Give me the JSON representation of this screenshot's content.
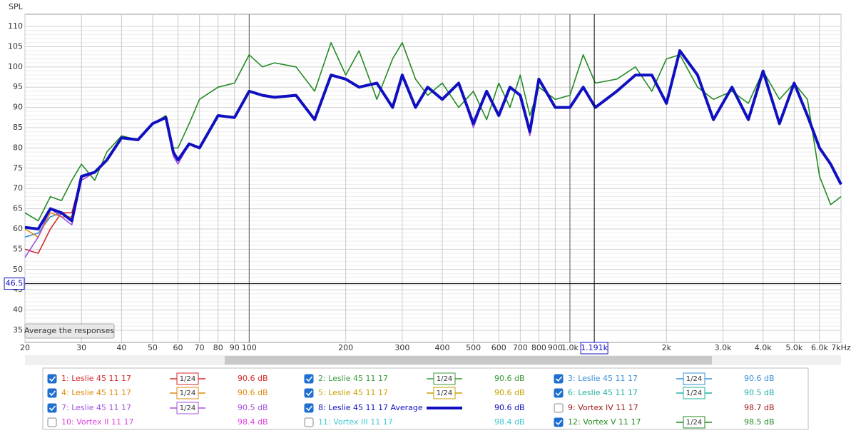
{
  "chart_data": {
    "type": "line",
    "y_label": "SPL",
    "button": "Average the responses",
    "x": [
      20,
      22,
      24,
      26,
      28,
      30,
      33,
      36,
      40,
      45,
      50,
      55,
      58,
      60,
      65,
      70,
      80,
      90,
      100,
      110,
      120,
      140,
      160,
      180,
      200,
      220,
      250,
      280,
      300,
      330,
      360,
      400,
      450,
      500,
      550,
      600,
      650,
      700,
      750,
      800,
      900,
      1000,
      1100,
      1200,
      1400,
      1600,
      1800,
      2000,
      2200,
      2500,
      2800,
      3200,
      3600,
      4000,
      4500,
      5000,
      5500,
      6000,
      6500,
      7000
    ],
    "xlim": [
      20,
      7000
    ],
    "log_x": true,
    "xticks": [
      20,
      30,
      40,
      50,
      60,
      70,
      80,
      90,
      100,
      200,
      300,
      400,
      500,
      600,
      700,
      800,
      900,
      {
        "value": 1000,
        "label": "1.0k"
      },
      {
        "value": 2000,
        "label": "2k"
      },
      {
        "value": 3000,
        "label": "3.0k"
      },
      {
        "value": 4000,
        "label": "4.0k"
      },
      {
        "value": 5000,
        "label": "5.0k"
      },
      {
        "value": 6000,
        "label": "6.0k"
      },
      {
        "value": 7000,
        "label": "7kHz"
      }
    ],
    "ylim": [
      32,
      113
    ],
    "yticks": [
      35,
      40,
      45,
      50,
      55,
      60,
      65,
      70,
      75,
      80,
      85,
      90,
      95,
      100,
      105,
      110
    ],
    "grid": true,
    "cursor": {
      "x": 1191,
      "x_label": "1.191k",
      "y": 46.5
    },
    "series": [
      {
        "name": "1: Leslie 45 11 17",
        "color": "#d42a2a",
        "checked": true,
        "smoothing": "1/24",
        "level": "90.6 dB",
        "values": [
          55,
          54,
          60,
          64,
          64,
          73,
          74,
          77,
          82.5,
          82,
          86,
          87.5,
          79,
          77,
          81,
          80,
          88,
          87.5,
          94,
          93,
          92.5,
          93,
          87,
          98,
          97,
          95,
          96,
          90,
          98,
          90,
          95,
          92,
          96,
          86,
          94,
          88,
          95,
          93,
          84,
          97,
          90,
          90,
          95,
          90,
          94,
          98,
          98,
          91,
          104,
          98,
          87,
          95,
          87,
          99,
          86,
          96,
          88,
          80,
          76,
          71
        ]
      },
      {
        "name": "2: Leslie 45 11 17",
        "color": "#3a9a3a",
        "checked": true,
        "smoothing": "1/24",
        "level": "90.6 dB"
      },
      {
        "name": "3: Leslie 45 11 17",
        "color": "#3a8fd8",
        "checked": true,
        "smoothing": "1/24",
        "level": "90.6 dB",
        "values": [
          58,
          59,
          63,
          64,
          62,
          73,
          74,
          77,
          82.5,
          82,
          86,
          87.5,
          79,
          77,
          81,
          80,
          88,
          87.5,
          94,
          93,
          92.5,
          93,
          87,
          98,
          97,
          95,
          96,
          90,
          98,
          90,
          95,
          92,
          96,
          86,
          94,
          88,
          95,
          93,
          84,
          97,
          90,
          90,
          95,
          90,
          94,
          98,
          98,
          91,
          104,
          98,
          87,
          95,
          87,
          99,
          86,
          96,
          88,
          80,
          76,
          71
        ]
      },
      {
        "name": "4: Leslie 45 11 17",
        "color": "#e08a10",
        "checked": true,
        "smoothing": "1/24",
        "level": "90.6 dB",
        "values": [
          60,
          58,
          64,
          63,
          63,
          72,
          74,
          77,
          82.5,
          82,
          86,
          87.5,
          79,
          77,
          81,
          80,
          88,
          87.5,
          94,
          93,
          92.5,
          93,
          87,
          98,
          97,
          95,
          96,
          90,
          98,
          90,
          95,
          92,
          96,
          86,
          94,
          88,
          95,
          93,
          84,
          97,
          90,
          90,
          95,
          90,
          94,
          98,
          98,
          91,
          104,
          98,
          87,
          95,
          87,
          99,
          86,
          96,
          88,
          80,
          76,
          71
        ]
      },
      {
        "name": "5: Leslie 45 11 17",
        "color": "#c8a000",
        "checked": true,
        "smoothing": "1/24",
        "level": "90.6 dB"
      },
      {
        "name": "6: Leslie 45 11 17",
        "color": "#20b0a0",
        "checked": true,
        "smoothing": "1/24",
        "level": "90.5 dB"
      },
      {
        "name": "7: Leslie 45 11 17",
        "color": "#a050e0",
        "checked": true,
        "smoothing": "1/24",
        "level": "90.5 dB",
        "values": [
          53,
          58,
          65,
          63,
          61,
          72,
          74,
          77,
          82.5,
          82,
          86,
          87.5,
          78,
          76,
          81,
          80,
          88,
          87.5,
          94,
          93,
          92.5,
          93,
          87,
          98,
          97,
          95,
          96,
          90,
          98,
          90,
          95,
          92,
          96,
          85,
          94,
          88,
          95,
          93,
          83,
          97,
          90,
          90,
          95,
          90,
          94,
          98,
          98,
          91,
          104,
          98,
          87,
          95,
          87,
          99,
          86,
          96,
          88,
          80,
          76,
          71
        ]
      },
      {
        "name": "8: Leslie 45 11 17 Average",
        "color": "#1010c0",
        "checked": true,
        "thick": true,
        "level": "90.6 dB",
        "values": [
          60.4,
          60,
          65,
          64,
          62,
          73,
          74,
          77,
          82.5,
          82,
          86,
          87.5,
          79,
          77,
          81,
          80,
          88,
          87.5,
          94,
          93,
          92.5,
          93,
          87,
          98,
          97,
          95,
          96,
          90,
          98,
          90,
          95,
          92,
          96,
          86,
          94,
          88,
          95,
          93,
          84,
          97,
          90,
          90,
          95,
          90,
          94,
          98,
          98,
          91,
          104,
          98,
          87,
          95,
          87,
          99,
          86,
          96,
          88,
          80,
          76,
          71
        ]
      },
      {
        "name": "9: Vortex IV 11 17",
        "color": "#a01818",
        "checked": false,
        "level": "98.7 dB"
      },
      {
        "name": "10: Vortex II 11 17",
        "color": "#e040e0",
        "checked": false,
        "level": "98.4 dB"
      },
      {
        "name": "11: Vortex III 11 17",
        "color": "#40c8d0",
        "checked": false,
        "level": "98.4 dB"
      },
      {
        "name": "12: Vortex V 11 17",
        "color": "#238a23",
        "checked": true,
        "smoothing": "1/24",
        "level": "98.5 dB",
        "values": [
          64,
          62,
          68,
          67,
          72,
          76,
          72,
          79,
          83,
          82,
          86,
          88,
          80,
          80,
          86,
          92,
          95,
          96,
          103,
          100,
          101,
          100,
          94,
          106,
          98,
          104,
          92,
          102,
          106,
          97,
          93,
          96,
          90,
          94,
          87,
          96,
          90,
          98,
          88,
          95,
          92,
          93,
          103,
          96,
          97,
          100,
          94,
          102,
          103,
          95,
          92,
          94,
          91,
          99,
          92,
          96,
          92,
          73,
          66,
          68
        ]
      }
    ]
  }
}
